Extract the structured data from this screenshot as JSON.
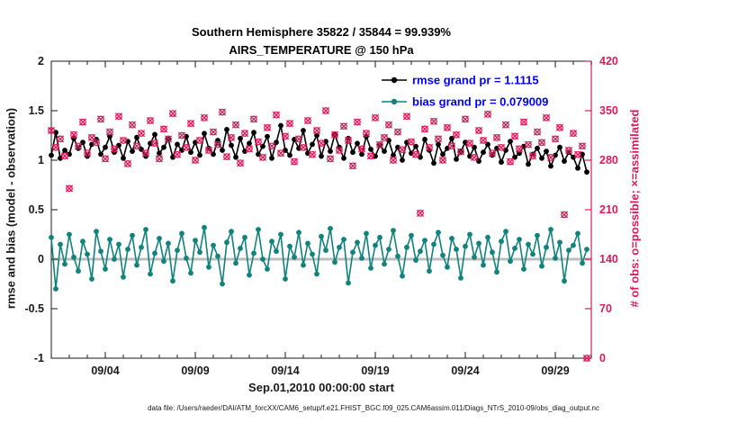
{
  "figure": {
    "title_line1": "Southern Hemisphere 35822 / 35844 = 99.939%",
    "title_line2": "AIRS_TEMPERATURE @ 150 hPa",
    "xlabel": "Sep.01,2010 00:00:00 start",
    "ylabel_left": "rmse and bias (model - observation)",
    "ylabel_right": "# of obs: o=possible; ×=assimilated",
    "footer": "data file: /Users/raeder/DAI/ATM_forcXX/CAM6_setup/f.e21.FHIST_BGC.f09_025.CAM6assim.011/Diags_NTrS_2010-09/obs_diag_output.nc",
    "colors": {
      "rmse": "#000000",
      "bias": "#0f837c",
      "obs": "#da1c5c",
      "legend_text": "#0000ff",
      "zero_line": "#bdbdbd",
      "axis": "#1a1a1a"
    }
  },
  "chart_data": {
    "type": "line",
    "title": "Southern Hemisphere 35822 / 35844 = 99.939% | AIRS_TEMPERATURE @ 150 hPa",
    "x_unit": "day of September 2010, 6-hourly bins",
    "x_start_day": 1.0,
    "x_step_days": 0.25,
    "x_axis": {
      "range": [
        1,
        31
      ],
      "tick_days": [
        4,
        9,
        14,
        19,
        24,
        29
      ],
      "tick_labels": [
        "09/04",
        "09/09",
        "09/14",
        "09/19",
        "09/24",
        "09/29"
      ],
      "label": "Sep.01,2010 00:00:00 start"
    },
    "y_left": {
      "range": [
        -1,
        2
      ],
      "ticks": [
        -1,
        -0.5,
        0,
        0.5,
        1,
        1.5,
        2
      ],
      "tick_labels": [
        "-1",
        "-0.5",
        "0",
        "0.5",
        "1",
        "1.5",
        "2"
      ],
      "label": "rmse and bias (model - observation)"
    },
    "y_right": {
      "range": [
        0,
        420
      ],
      "ticks": [
        0,
        70,
        140,
        210,
        280,
        350,
        420
      ],
      "tick_labels": [
        "0",
        "70",
        "140",
        "210",
        "280",
        "350",
        "420"
      ],
      "label": "# of obs: o=possible; ×=assimilated"
    },
    "legend": [
      {
        "label": "rmse grand pr = 1.1115",
        "series": "rmse"
      },
      {
        "label": "bias grand pr = 0.079009",
        "series": "bias"
      }
    ],
    "grand_rmse": 1.1115,
    "grand_bias": 0.079009,
    "series": [
      {
        "name": "rmse",
        "axis": "left",
        "marker": "dot-line",
        "values": [
          1.05,
          1.28,
          1.02,
          1.1,
          1.06,
          1.22,
          1.12,
          1.18,
          1.04,
          1.16,
          1.21,
          1.06,
          1.13,
          1.24,
          1.08,
          1.15,
          1.02,
          1.19,
          1.09,
          1.23,
          1.11,
          1.04,
          1.17,
          1.26,
          1.07,
          1.13,
          1.21,
          1.03,
          1.16,
          1.1,
          1.24,
          1.08,
          1.18,
          1.05,
          1.27,
          1.12,
          1.06,
          1.2,
          1.1,
          1.31,
          1.15,
          1.03,
          1.22,
          1.09,
          1.17,
          1.28,
          1.06,
          1.14,
          1.24,
          1.02,
          1.18,
          1.35,
          1.1,
          1.05,
          1.21,
          1.12,
          1.3,
          1.07,
          1.16,
          1.25,
          1.04,
          1.19,
          1.09,
          1.26,
          1.13,
          1.02,
          1.22,
          1.08,
          1.17,
          1.06,
          1.24,
          1.11,
          1.04,
          1.15,
          1.09,
          1.2,
          1.05,
          1.13,
          1.0,
          1.18,
          1.07,
          1.14,
          1.03,
          1.21,
          1.1,
          0.97,
          1.16,
          1.06,
          1.12,
          1.22,
          1.01,
          1.09,
          1.18,
          1.04,
          1.13,
          0.99,
          1.08,
          1.16,
          1.05,
          1.12,
          0.98,
          1.1,
          1.19,
          1.03,
          1.07,
          1.14,
          0.96,
          1.06,
          1.12,
          1.02,
          1.09,
          0.94,
          1.05,
          1.13,
          0.99,
          1.08,
          1.03,
          0.92,
          1.06,
          0.88
        ]
      },
      {
        "name": "bias",
        "axis": "left",
        "marker": "dot-line",
        "values": [
          0.22,
          -0.3,
          0.15,
          -0.05,
          0.25,
          0.02,
          -0.12,
          0.18,
          0.05,
          -0.2,
          0.28,
          0.08,
          -0.1,
          0.2,
          0.0,
          0.15,
          -0.18,
          0.1,
          0.24,
          -0.06,
          0.12,
          0.3,
          -0.15,
          0.06,
          0.21,
          -0.02,
          0.16,
          -0.22,
          0.09,
          0.26,
          0.01,
          -0.14,
          0.19,
          0.07,
          0.32,
          -0.08,
          0.14,
          0.03,
          -0.25,
          0.17,
          0.28,
          -0.04,
          0.11,
          0.22,
          -0.16,
          0.06,
          0.3,
          0.0,
          -0.1,
          0.18,
          0.08,
          0.25,
          -0.2,
          0.13,
          0.02,
          0.27,
          -0.06,
          0.16,
          0.05,
          -0.15,
          0.23,
          0.09,
          0.31,
          -0.03,
          0.12,
          0.2,
          -0.24,
          0.07,
          0.17,
          0.01,
          0.26,
          -0.09,
          0.14,
          0.22,
          -0.05,
          0.1,
          0.29,
          0.03,
          -0.17,
          0.12,
          0.24,
          -0.01,
          0.08,
          0.19,
          -0.12,
          0.15,
          0.27,
          0.04,
          -0.08,
          0.21,
          0.1,
          -0.19,
          0.13,
          0.25,
          0.02,
          0.16,
          -0.06,
          0.22,
          0.07,
          -0.13,
          0.18,
          0.28,
          -0.02,
          0.11,
          0.2,
          -0.1,
          0.15,
          0.05,
          0.24,
          -0.07,
          0.12,
          0.3,
          0.01,
          0.17,
          -0.22,
          0.09,
          0.14,
          0.26,
          -0.04,
          0.1
        ]
      },
      {
        "name": "obs_possible",
        "axis": "right",
        "marker": "o",
        "values": [
          322,
          298,
          310,
          286,
          240,
          316,
          300,
          334,
          290,
          312,
          305,
          338,
          282,
          320,
          296,
          342,
          308,
          275,
          330,
          300,
          318,
          290,
          336,
          304,
          282,
          324,
          310,
          346,
          288,
          315,
          298,
          332,
          280,
          308,
          340,
          294,
          320,
          302,
          348,
          285,
          312,
          330,
          276,
          318,
          296,
          338,
          306,
          284,
          326,
          300,
          344,
          290,
          314,
          332,
          278,
          310,
          298,
          336,
          288,
          322,
          304,
          350,
          282,
          316,
          294,
          328,
          308,
          272,
          334,
          296,
          318,
          286,
          340,
          302,
          312,
          330,
          280,
          320,
          295,
          342,
          306,
          288,
          205,
          324,
          298,
          335,
          310,
          280,
          326,
          300,
          316,
          292,
          338,
          304,
          284,
          322,
          308,
          345,
          290,
          312,
          298,
          330,
          278,
          314,
          296,
          334,
          302,
          286,
          320,
          305,
          340,
          284,
          310,
          326,
          203,
          294,
          318,
          288,
          300,
          0
        ]
      },
      {
        "name": "obs_assimilated",
        "axis": "right",
        "marker": "x",
        "values": [
          322,
          298,
          310,
          286,
          240,
          316,
          300,
          334,
          290,
          312,
          305,
          338,
          282,
          320,
          296,
          342,
          308,
          275,
          330,
          300,
          318,
          290,
          336,
          304,
          282,
          324,
          310,
          346,
          288,
          315,
          298,
          332,
          280,
          308,
          340,
          294,
          320,
          302,
          348,
          285,
          312,
          330,
          276,
          318,
          296,
          338,
          306,
          284,
          326,
          300,
          344,
          290,
          314,
          332,
          278,
          310,
          298,
          336,
          288,
          322,
          304,
          350,
          282,
          316,
          294,
          328,
          308,
          272,
          334,
          296,
          318,
          286,
          340,
          302,
          312,
          330,
          280,
          320,
          295,
          342,
          306,
          288,
          205,
          324,
          298,
          335,
          310,
          280,
          326,
          300,
          316,
          292,
          338,
          304,
          284,
          322,
          308,
          345,
          290,
          312,
          298,
          330,
          278,
          314,
          296,
          334,
          302,
          286,
          320,
          305,
          340,
          284,
          310,
          326,
          203,
          294,
          318,
          288,
          300,
          0
        ]
      }
    ]
  }
}
